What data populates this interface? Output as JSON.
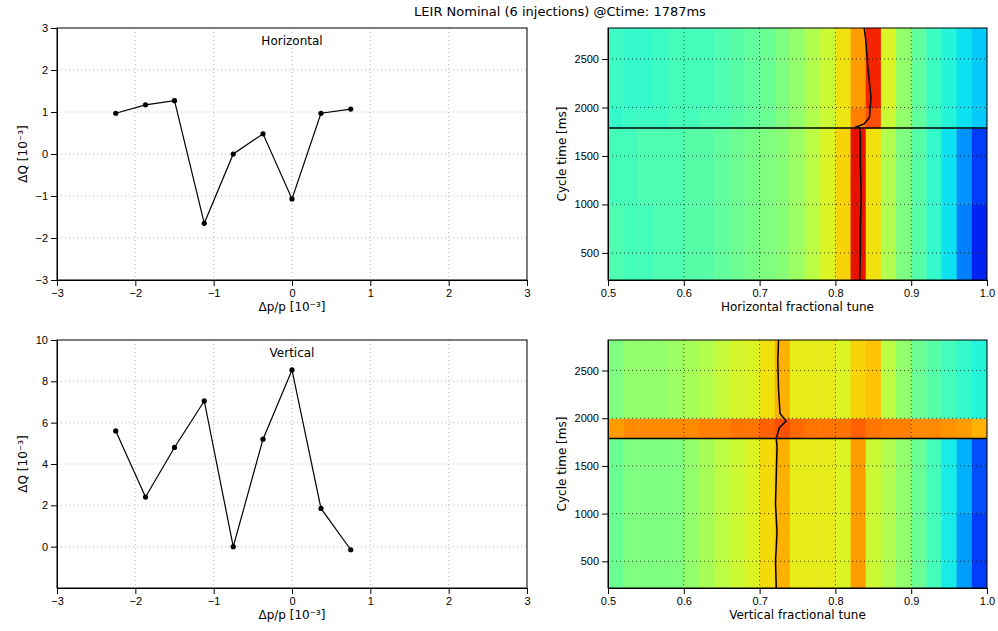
{
  "title": "LEIR Nominal (6 injections) @Ctime: 1787ms",
  "chart_data": [
    {
      "type": "line",
      "title": "Horizontal",
      "xlabel": "Δp/p [10⁻³]",
      "ylabel": "ΔQ [10⁻³]",
      "xlim": [
        -3,
        3
      ],
      "ylim": [
        -3,
        3
      ],
      "xticks": [
        {
          "value": -3,
          "label": "−3"
        },
        {
          "value": -2,
          "label": "−2"
        },
        {
          "value": -1,
          "label": "−1"
        },
        0,
        1,
        2,
        3
      ],
      "yticks": [
        {
          "value": -3,
          "label": "−3"
        },
        {
          "value": -2,
          "label": "−2"
        },
        {
          "value": -1,
          "label": "−1"
        },
        0,
        1,
        2,
        3
      ],
      "grid": true,
      "color": "#000000",
      "marker": "circle",
      "line_style": "solid",
      "x": [
        -2.25,
        -1.87,
        -1.5,
        -1.12,
        -0.75,
        -0.37,
        0,
        0.37,
        0.75
      ],
      "values": [
        0.97,
        1.17,
        1.27,
        -1.65,
        0.0,
        0.48,
        -1.07,
        0.97,
        1.07
      ]
    },
    {
      "type": "heatmap",
      "xlabel": "Horizontal fractional tune",
      "ylabel": "Cycle time [ms]",
      "xlim": [
        0.5,
        1.0
      ],
      "ylim": [
        220,
        2820
      ],
      "xticks": [
        0.5,
        0.6,
        0.7,
        0.8,
        0.9,
        {
          "value": 1.0,
          "label": "1.0"
        }
      ],
      "yticks": [
        500,
        1000,
        1500,
        2000,
        2500
      ],
      "grid": true,
      "color_range": [
        0,
        1
      ],
      "ctime": 1787,
      "x_bins": [
        0.5,
        0.52,
        0.54,
        0.56,
        0.58,
        0.6,
        0.62,
        0.64,
        0.66,
        0.68,
        0.7,
        0.72,
        0.74,
        0.76,
        0.78,
        0.8,
        0.82,
        0.84,
        0.86,
        0.88,
        0.9,
        0.92,
        0.94,
        0.96,
        0.98,
        1.0
      ],
      "y_bins": [
        220,
        1000,
        1787,
        2000,
        2820
      ],
      "cells": [
        [
          0.45,
          0.44,
          0.44,
          0.45,
          0.45,
          0.46,
          0.46,
          0.47,
          0.48,
          0.49,
          0.5,
          0.51,
          0.53,
          0.56,
          0.6,
          0.66,
          0.88,
          0.64,
          0.55,
          0.5,
          0.46,
          0.42,
          0.36,
          0.25,
          0.15
        ],
        [
          0.44,
          0.44,
          0.45,
          0.45,
          0.45,
          0.46,
          0.46,
          0.47,
          0.48,
          0.49,
          0.5,
          0.51,
          0.53,
          0.56,
          0.6,
          0.66,
          0.88,
          0.64,
          0.55,
          0.5,
          0.46,
          0.42,
          0.36,
          0.27,
          0.18
        ],
        [
          0.42,
          0.43,
          0.43,
          0.43,
          0.44,
          0.44,
          0.45,
          0.45,
          0.46,
          0.47,
          0.48,
          0.5,
          0.52,
          0.55,
          0.58,
          0.63,
          0.75,
          0.8,
          0.58,
          0.52,
          0.47,
          0.43,
          0.4,
          0.36,
          0.33
        ],
        [
          0.43,
          0.42,
          0.42,
          0.43,
          0.44,
          0.44,
          0.44,
          0.45,
          0.46,
          0.47,
          0.48,
          0.5,
          0.52,
          0.55,
          0.58,
          0.64,
          0.72,
          0.85,
          0.6,
          0.52,
          0.47,
          0.43,
          0.4,
          0.36,
          0.33
        ]
      ],
      "series": [
        {
          "type": "line",
          "color": "#000000",
          "line_style": "solid",
          "x": [
            0.832,
            0.833,
            0.833,
            0.834,
            0.833,
            0.833,
            0.832,
            0.828,
            0.838,
            0.845,
            0.847,
            0.843,
            0.84,
            0.838
          ],
          "values": [
            220,
            500,
            800,
            1100,
            1400,
            1700,
            1787,
            1800,
            1830,
            1900,
            2100,
            2400,
            2700,
            2820
          ]
        }
      ]
    },
    {
      "type": "line",
      "title": "Vertical",
      "xlabel": "Δp/p [10⁻³]",
      "ylabel": "ΔQ [10⁻³]",
      "xlim": [
        -3,
        3
      ],
      "ylim": [
        -2,
        10
      ],
      "xticks": [
        {
          "value": -3,
          "label": "−3"
        },
        {
          "value": -2,
          "label": "−2"
        },
        {
          "value": -1,
          "label": "−1"
        },
        0,
        1,
        2,
        3
      ],
      "yticks": [
        0,
        2,
        4,
        6,
        8,
        10
      ],
      "grid": true,
      "color": "#000000",
      "marker": "circle",
      "line_style": "solid",
      "x": [
        -2.25,
        -1.87,
        -1.5,
        -1.12,
        -0.75,
        -0.37,
        0,
        0.37,
        0.75
      ],
      "values": [
        5.6,
        2.4,
        4.8,
        7.05,
        0.0,
        5.2,
        8.55,
        1.85,
        -0.15
      ]
    },
    {
      "type": "heatmap",
      "xlabel": "Vertical fractional tune",
      "ylabel": "Cycle time [ms]",
      "xlim": [
        0.5,
        1.0
      ],
      "ylim": [
        220,
        2820
      ],
      "xticks": [
        0.5,
        0.6,
        0.7,
        0.8,
        0.9,
        {
          "value": 1.0,
          "label": "1.0"
        }
      ],
      "yticks": [
        500,
        1000,
        1500,
        2000,
        2500
      ],
      "grid": true,
      "color_range": [
        0,
        1
      ],
      "ctime": 1787,
      "x_bins": [
        0.5,
        0.52,
        0.54,
        0.56,
        0.58,
        0.6,
        0.62,
        0.64,
        0.66,
        0.68,
        0.7,
        0.72,
        0.74,
        0.76,
        0.78,
        0.8,
        0.82,
        0.84,
        0.86,
        0.88,
        0.9,
        0.92,
        0.94,
        0.96,
        0.98,
        1.0
      ],
      "y_bins": [
        220,
        1000,
        1787,
        2000,
        2820
      ],
      "cells": [
        [
          0.48,
          0.5,
          0.5,
          0.5,
          0.5,
          0.52,
          0.54,
          0.56,
          0.58,
          0.6,
          0.65,
          0.7,
          0.62,
          0.62,
          0.62,
          0.6,
          0.72,
          0.58,
          0.55,
          0.52,
          0.48,
          0.44,
          0.38,
          0.28,
          0.18
        ],
        [
          0.48,
          0.5,
          0.5,
          0.5,
          0.5,
          0.52,
          0.54,
          0.56,
          0.58,
          0.6,
          0.65,
          0.7,
          0.62,
          0.62,
          0.62,
          0.6,
          0.72,
          0.58,
          0.55,
          0.52,
          0.48,
          0.44,
          0.38,
          0.3,
          0.2
        ],
        [
          0.72,
          0.74,
          0.74,
          0.74,
          0.74,
          0.74,
          0.75,
          0.75,
          0.76,
          0.76,
          0.78,
          0.8,
          0.77,
          0.76,
          0.76,
          0.76,
          0.78,
          0.76,
          0.75,
          0.75,
          0.74,
          0.74,
          0.73,
          0.72,
          0.7
        ],
        [
          0.5,
          0.52,
          0.52,
          0.52,
          0.53,
          0.54,
          0.55,
          0.57,
          0.59,
          0.6,
          0.64,
          0.7,
          0.62,
          0.62,
          0.62,
          0.6,
          0.66,
          0.68,
          0.56,
          0.52,
          0.48,
          0.46,
          0.44,
          0.42,
          0.4
        ]
      ],
      "series": [
        {
          "type": "line",
          "color": "#000000",
          "line_style": "solid",
          "x": [
            0.722,
            0.721,
            0.723,
            0.721,
            0.722,
            0.723,
            0.722,
            0.726,
            0.735,
            0.727,
            0.725,
            0.724,
            0.725
          ],
          "values": [
            220,
            500,
            800,
            1100,
            1400,
            1700,
            1787,
            1900,
            1970,
            2050,
            2300,
            2600,
            2820
          ]
        }
      ]
    }
  ]
}
